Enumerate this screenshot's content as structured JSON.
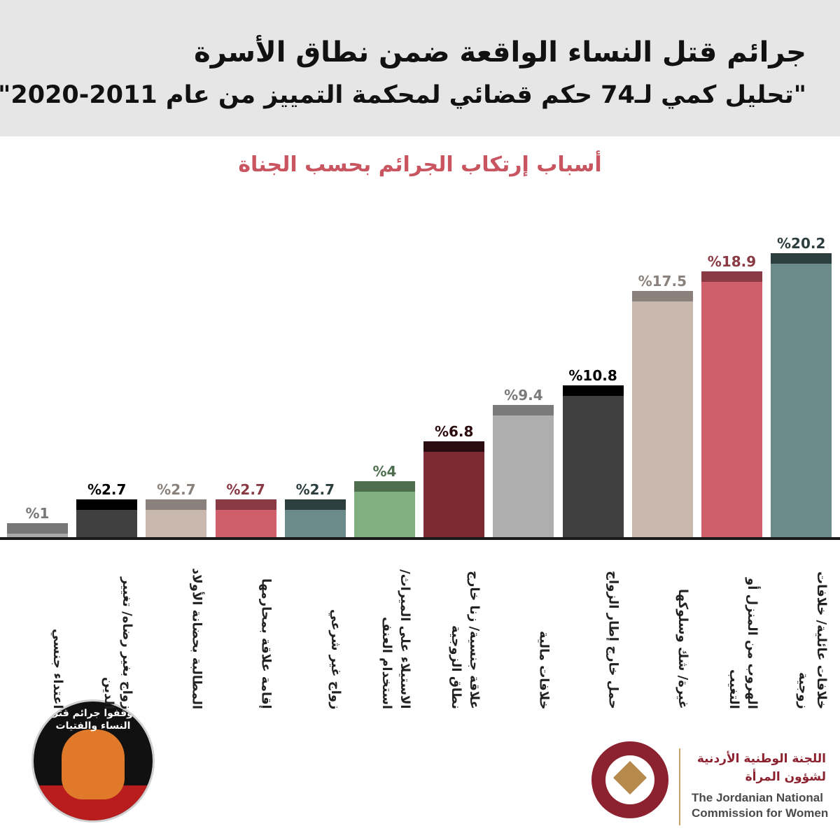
{
  "chart_data": {
    "type": "bar",
    "title": "جرائم قتل النساء الواقعة ضمن نطاق الأسرة",
    "subtitle": "\"تحليل كمي لـ74 حكم قضائي لمحكمة التمييز من عام 2011-2020\"",
    "chart_title": "أسباب إرتكاب الجرائم بحسب الجناة",
    "categories": [
      "اعتداء جنسي",
      "زواج بغير رضاه/ تغيير الدين",
      "المطالبة بحضانة الأولاد",
      "إقامة علاقة بمحارمها",
      "زواج غير شرعي",
      "الاستيلاء على الميراث/ استخدام العنف",
      "علاقة جنسية/ زنا خارج نطاق الزوجية",
      "خلافات مالية",
      "حمل خارج إطار الزواج",
      "غيرة/ شك وسلوكها",
      "الهروب من المنزل أو التغيب",
      "خلافات عائلية/ خلافات زوجية"
    ],
    "values": [
      1,
      2.7,
      2.7,
      2.7,
      2.7,
      4,
      6.8,
      9.4,
      10.8,
      17.5,
      18.9,
      20.2
    ],
    "value_labels": [
      "%1",
      "%2.7",
      "%2.7",
      "%2.7",
      "%2.7",
      "%4",
      "%6.8",
      "%9.4",
      "%10.8",
      "%17.5",
      "%18.9",
      "%20.2"
    ],
    "colors": [
      "#a9a9a9",
      "#404040",
      "#c8b8ae",
      "#cf5f6a",
      "#6b8a8a",
      "#80b080",
      "#7c2a33",
      "#aeaeae",
      "#404040",
      "#c8b8ae",
      "#cf5f6a",
      "#6b8a8a"
    ],
    "cap_colors": [
      "#777777",
      "#000000",
      "#8a807c",
      "#8a3a44",
      "#2d3e3e",
      "#4e6e4e",
      "#2a0c10",
      "#7a7a7a",
      "#000000",
      "#8a807c",
      "#8a3a44",
      "#2d3e3e"
    ]
  },
  "logos": {
    "campaign": "أوقفوا جرائم قتل النساء والفتيات",
    "org_arabic": "اللجنة الوطنية الأردنية لشؤون المرأة",
    "org_english_1": "The Jordanian National",
    "org_english_2": "Commission for Women"
  }
}
